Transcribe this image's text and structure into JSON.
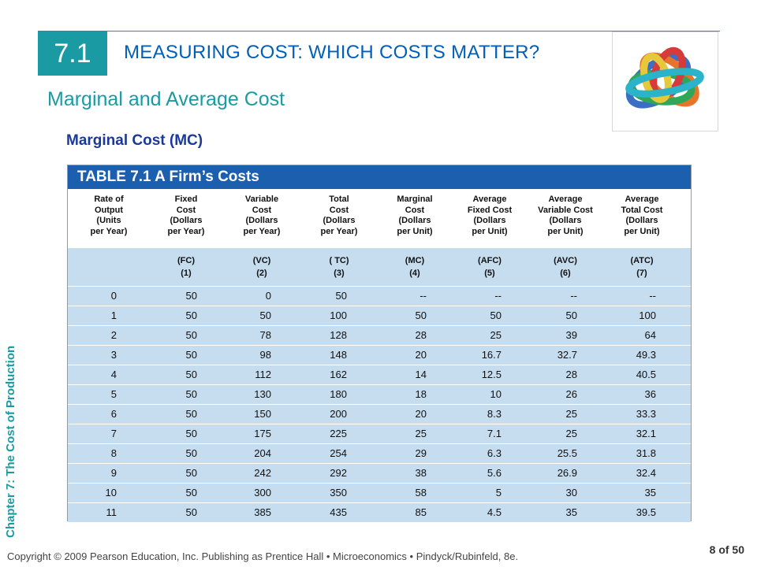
{
  "header": {
    "section_number": "7.1",
    "title": "MEASURING COST: WHICH COSTS MATTER?",
    "subtitle": "Marginal and Average Cost",
    "section_heading": "Marginal Cost (MC)"
  },
  "side_label": "Chapter 7:  The Cost of Production",
  "table": {
    "title": "TABLE 7.1    A Firm’s Costs",
    "columns": [
      {
        "lines": [
          "Rate of",
          "Output",
          "(Units",
          "per Year)"
        ],
        "abbr": "",
        "num": ""
      },
      {
        "lines": [
          "Fixed",
          "Cost",
          "(Dollars",
          "per Year)"
        ],
        "abbr": "(FC)",
        "num": "(1)"
      },
      {
        "lines": [
          "Variable",
          "Cost",
          "(Dollars",
          "per Year)"
        ],
        "abbr": "(VC)",
        "num": "(2)"
      },
      {
        "lines": [
          "Total",
          "Cost",
          "(Dollars",
          "per Year)"
        ],
        "abbr": "( TC)",
        "num": "(3)"
      },
      {
        "lines": [
          "Marginal",
          "Cost",
          "(Dollars",
          "per Unit)"
        ],
        "abbr": "(MC)",
        "num": "(4)"
      },
      {
        "lines": [
          "Average",
          "Fixed Cost",
          "(Dollars",
          "per Unit)"
        ],
        "abbr": "(AFC)",
        "num": "(5)"
      },
      {
        "lines": [
          "Average",
          "Variable Cost",
          "(Dollars",
          "per Unit)"
        ],
        "abbr": "(AVC)",
        "num": "(6)"
      },
      {
        "lines": [
          "Average",
          "Total Cost",
          "(Dollars",
          "per Unit)"
        ],
        "abbr": "(ATC)",
        "num": "(7)"
      }
    ],
    "rows": [
      [
        "0",
        "50",
        "0",
        "50",
        "--",
        "--",
        "--",
        "--"
      ],
      [
        "1",
        "50",
        "50",
        "100",
        "50",
        "50",
        "50",
        "100"
      ],
      [
        "2",
        "50",
        "78",
        "128",
        "28",
        "25",
        "39",
        "64"
      ],
      [
        "3",
        "50",
        "98",
        "148",
        "20",
        "16.7",
        "32.7",
        "49.3"
      ],
      [
        "4",
        "50",
        "112",
        "162",
        "14",
        "12.5",
        "28",
        "40.5"
      ],
      [
        "5",
        "50",
        "130",
        "180",
        "18",
        "10",
        "26",
        "36"
      ],
      [
        "6",
        "50",
        "150",
        "200",
        "20",
        "8.3",
        "25",
        "33.3"
      ],
      [
        "7",
        "50",
        "175",
        "225",
        "25",
        "7.1",
        "25",
        "32.1"
      ],
      [
        "8",
        "50",
        "204",
        "254",
        "29",
        "6.3",
        "25.5",
        "31.8"
      ],
      [
        "9",
        "50",
        "242",
        "292",
        "38",
        "5.6",
        "26.9",
        "32.4"
      ],
      [
        "10",
        "50",
        "300",
        "350",
        "58",
        "5",
        "30",
        "35"
      ],
      [
        "11",
        "50",
        "385",
        "435",
        "85",
        "4.5",
        "35",
        "39.5"
      ]
    ]
  },
  "footer": {
    "copyright": "Copyright © 2009 Pearson Education, Inc. Publishing as Prentice Hall  •  Microeconomics  •  Pindyck/Rubinfeld, 8e.",
    "page": "8 of 50"
  },
  "colors": {
    "accent_teal": "#1a9ba3",
    "header_blue": "#005fb8",
    "table_title_bg": "#1b5fae",
    "row_bg": "#c6dcef"
  },
  "decorations": {
    "logo": "interlocking-rings-graphic"
  }
}
